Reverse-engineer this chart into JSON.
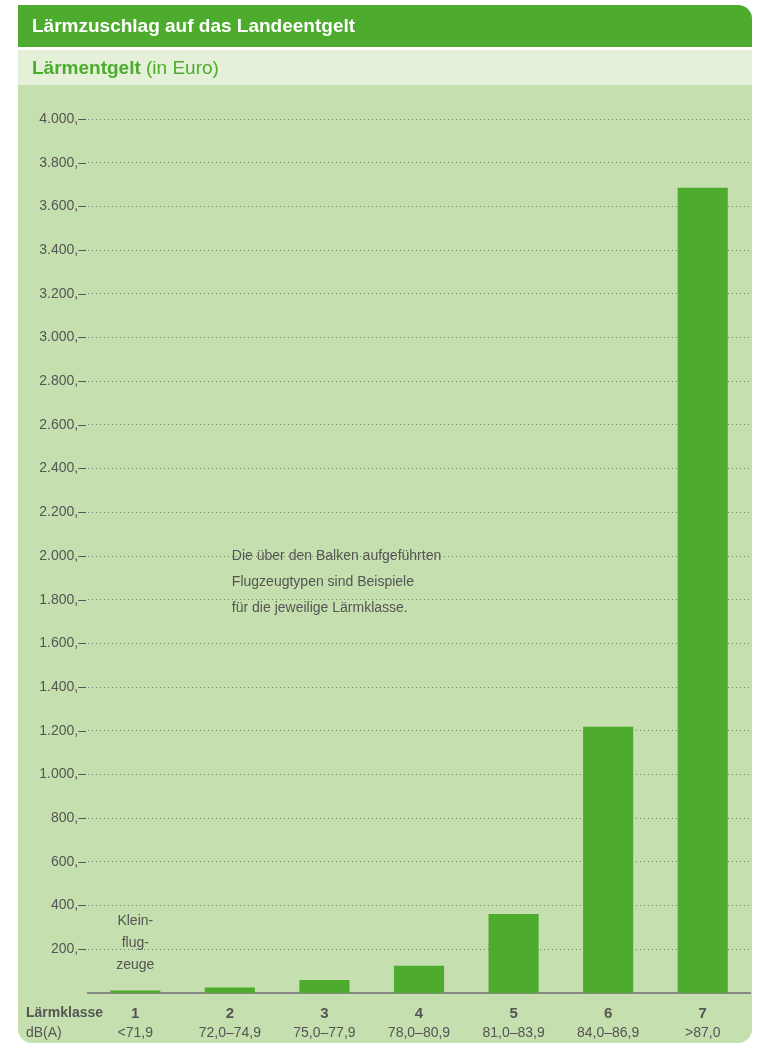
{
  "chart_data": {
    "type": "bar",
    "title": "Lärmzuschlag auf das Landeentgelt",
    "subtitle": "Lärmentgelt (in Euro)",
    "categories": [
      "1",
      "2",
      "3",
      "4",
      "5",
      "6",
      "7"
    ],
    "values": [
      12,
      25,
      60,
      125,
      362,
      1218,
      3685
    ],
    "color": "#4dab2e",
    "ylim": [
      0,
      4000
    ],
    "yticks": [
      {
        "value": 200,
        "label": "200,–"
      },
      {
        "value": 400,
        "label": "400,–"
      },
      {
        "value": 600,
        "label": "600,–"
      },
      {
        "value": 800,
        "label": "800,–"
      },
      {
        "value": 1000,
        "label": "1.000,–"
      },
      {
        "value": 1200,
        "label": "1.200,–"
      },
      {
        "value": 1400,
        "label": "1.400,–"
      },
      {
        "value": 1600,
        "label": "1.600,–"
      },
      {
        "value": 1800,
        "label": "1.800,–"
      },
      {
        "value": 2000,
        "label": "2.000,–"
      },
      {
        "value": 2200,
        "label": "2.200,–"
      },
      {
        "value": 2400,
        "label": "2.400,–"
      },
      {
        "value": 2600,
        "label": "2.600,–"
      },
      {
        "value": 2800,
        "label": "2.800,–"
      },
      {
        "value": 3000,
        "label": "3.000,–"
      },
      {
        "value": 3200,
        "label": "3.200,–"
      },
      {
        "value": 3400,
        "label": "3.400,–"
      },
      {
        "value": 3600,
        "label": "3.600,–"
      },
      {
        "value": 3800,
        "label": "3.800,–"
      },
      {
        "value": 4000,
        "label": "4.000,–"
      }
    ],
    "grid": "y",
    "legend": false,
    "annotations": [
      "Die über den Balken aufgeführten\nFlugzeugtypen sind Beispiele\nfür die jeweilige Lärmklasse.",
      "Lärmklasse",
      "dB(A)",
      "Klein-\nflug-\nzeuge",
      "<71,9",
      "72,0–74,9",
      "75,0–77,9",
      "78,0–80,9",
      "81,0–83,9",
      "84,0–86,9",
      ">87,0"
    ]
  }
}
